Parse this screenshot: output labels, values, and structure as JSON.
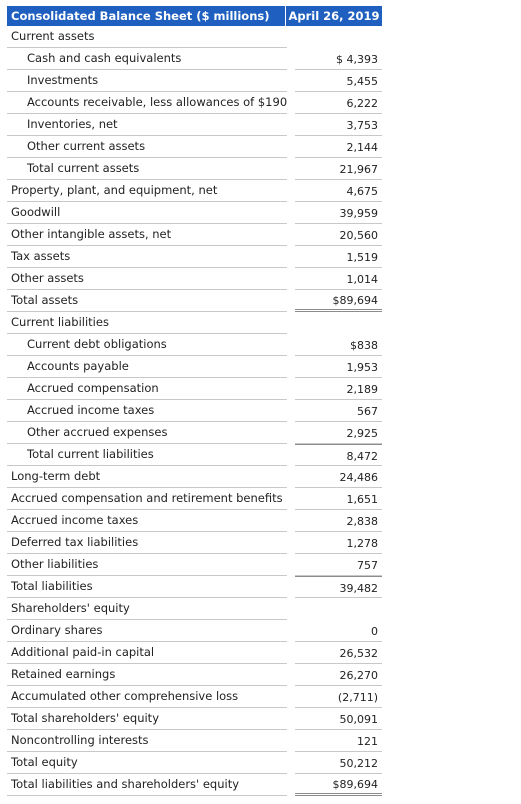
{
  "header": {
    "col1": "Consolidated Balance Sheet ($ millions)",
    "col2": "April 26, 2019"
  },
  "rows": [
    {
      "label": "Current assets",
      "value": "",
      "kind": "section"
    },
    {
      "label": "Cash and cash equivalents",
      "value": "$ 4,393",
      "kind": "indent"
    },
    {
      "label": "Investments",
      "value": "5,455",
      "kind": "indent"
    },
    {
      "label": "Accounts receivable, less allowances of $190",
      "value": "6,222",
      "kind": "indent"
    },
    {
      "label": "Inventories, net",
      "value": "3,753",
      "kind": "indent"
    },
    {
      "label": "Other current assets",
      "value": "2,144",
      "kind": "indent"
    },
    {
      "label": "Total current assets",
      "value": "21,967",
      "kind": "indent"
    },
    {
      "label": "Property, plant, and equipment, net",
      "value": "4,675",
      "kind": "plain"
    },
    {
      "label": "Goodwill",
      "value": "39,959",
      "kind": "plain"
    },
    {
      "label": "Other intangible assets, net",
      "value": "20,560",
      "kind": "plain"
    },
    {
      "label": "Tax assets",
      "value": "1,519",
      "kind": "plain"
    },
    {
      "label": "Other assets",
      "value": "1,014",
      "kind": "plain"
    },
    {
      "label": "Total assets",
      "value": "$89,694",
      "kind": "total"
    },
    {
      "label": "Current liabilities",
      "value": "",
      "kind": "section"
    },
    {
      "label": "Current debt obligations",
      "value": "$838",
      "kind": "indent"
    },
    {
      "label": "Accounts payable",
      "value": "1,953",
      "kind": "indent"
    },
    {
      "label": "Accrued compensation",
      "value": "2,189",
      "kind": "indent"
    },
    {
      "label": "Accrued income taxes",
      "value": "567",
      "kind": "indent"
    },
    {
      "label": "Other accrued expenses",
      "value": "2,925",
      "kind": "indent"
    },
    {
      "label": "Total current liabilities",
      "value": "8,472",
      "kind": "indent-subtotal"
    },
    {
      "label": "Long-term debt",
      "value": "24,486",
      "kind": "plain"
    },
    {
      "label": "Accrued compensation and retirement benefits",
      "value": "1,651",
      "kind": "plain"
    },
    {
      "label": "Accrued income taxes",
      "value": "2,838",
      "kind": "plain"
    },
    {
      "label": "Deferred tax liabilities",
      "value": "1,278",
      "kind": "plain"
    },
    {
      "label": "Other liabilities",
      "value": "757",
      "kind": "plain"
    },
    {
      "label": "Total liabilities",
      "value": "39,482",
      "kind": "subtotal"
    },
    {
      "label": "Shareholders' equity",
      "value": "",
      "kind": "section"
    },
    {
      "label": "Ordinary shares",
      "value": "0",
      "kind": "plain"
    },
    {
      "label": "Additional paid-in capital",
      "value": "26,532",
      "kind": "plain"
    },
    {
      "label": "Retained earnings",
      "value": "26,270",
      "kind": "plain"
    },
    {
      "label": "Accumulated other comprehensive loss",
      "value": "(2,711)",
      "kind": "plain"
    },
    {
      "label": "Total shareholders' equity",
      "value": "50,091",
      "kind": "plain"
    },
    {
      "label": "Noncontrolling interests",
      "value": "121",
      "kind": "plain"
    },
    {
      "label": "Total equity",
      "value": "50,212",
      "kind": "plain"
    },
    {
      "label": "Total liabilities and shareholders' equity",
      "value": "$89,694",
      "kind": "total"
    }
  ]
}
